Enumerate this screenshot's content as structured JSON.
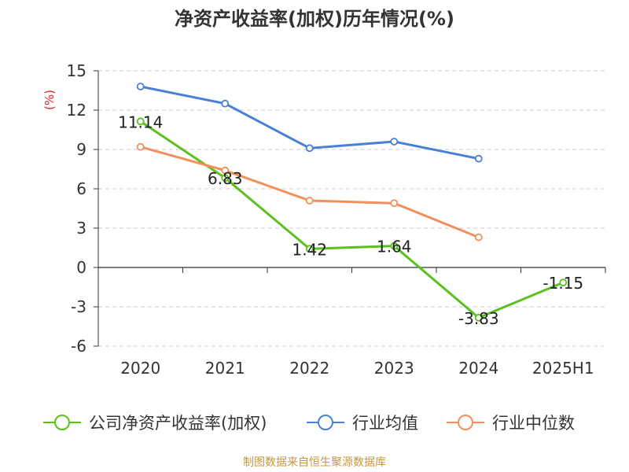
{
  "title": "净资产收益率(加权)历年情况(%)",
  "source": "制图数据来自恒生聚源数据库",
  "chart_data": {
    "type": "line",
    "title": "净资产收益率(加权)历年情况(%)",
    "ylabel": "(%)",
    "xlabel": "",
    "categories": [
      "2020",
      "2021",
      "2022",
      "2023",
      "2024",
      "2025H1"
    ],
    "ylim": [
      -6,
      15
    ],
    "yticks": [
      15,
      12,
      9,
      6,
      3,
      0,
      -3,
      -6
    ],
    "grid": true,
    "legend_position": "bottom",
    "series": [
      {
        "name": "公司净资产收益率(加权)",
        "color": "#5cc01f",
        "values": [
          11.14,
          6.83,
          1.42,
          1.64,
          -3.83,
          -1.15
        ],
        "labels": [
          "11.14",
          "6.83",
          "1.42",
          "1.64",
          "-3.83",
          "-1.15"
        ]
      },
      {
        "name": "行业均值",
        "color": "#4a7fd9",
        "values": [
          13.8,
          12.5,
          9.1,
          9.6,
          8.3,
          null
        ]
      },
      {
        "name": "行业中位数",
        "color": "#f28f5c",
        "values": [
          9.2,
          7.4,
          5.1,
          4.9,
          2.3,
          null
        ]
      }
    ]
  }
}
